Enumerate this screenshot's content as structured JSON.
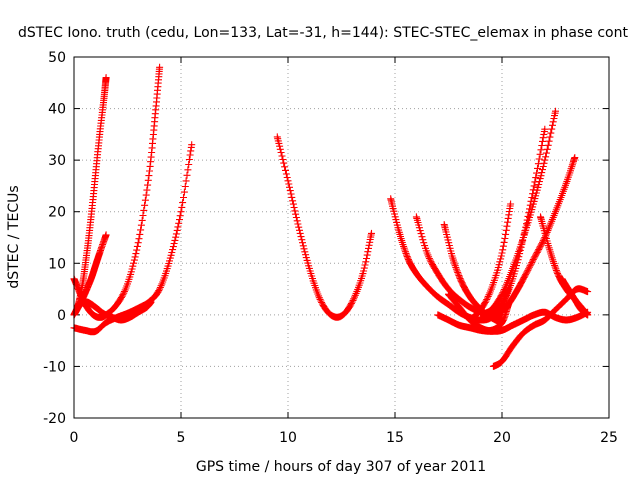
{
  "chart_data": {
    "type": "scatter",
    "title": "dSTEC Iono. truth (cedu, Lon=133, Lat=-31, h=144): STEC-STEC_elemax in phase cont",
    "xlabel": "GPS time / hours of day 307 of year 2011",
    "ylabel": "dSTEC  / TECUs",
    "xlim": [
      0,
      25
    ],
    "ylim": [
      -20,
      50
    ],
    "xticks": [
      0,
      5,
      10,
      15,
      20,
      25
    ],
    "yticks": [
      -20,
      -10,
      0,
      10,
      20,
      30,
      40,
      50
    ],
    "grid": true,
    "marker": "plus",
    "color": "#ff0000",
    "series": [
      {
        "x": [
          0.0,
          0.2,
          0.4,
          0.6,
          0.8,
          1.0,
          1.2,
          1.4,
          1.5
        ],
        "y": [
          0.0,
          2.0,
          6.0,
          12.0,
          19.0,
          27.0,
          35.0,
          42.0,
          46.0
        ]
      },
      {
        "x": [
          0.0,
          0.3,
          0.6,
          0.9,
          1.2,
          1.5,
          2.0,
          2.5,
          3.0,
          3.5,
          3.8,
          4.0
        ],
        "y": [
          7.0,
          4.0,
          1.5,
          0.0,
          -0.5,
          0.0,
          2.0,
          6.0,
          14.0,
          27.0,
          39.0,
          48.0
        ]
      },
      {
        "x": [
          0.0,
          0.2,
          0.5,
          0.8,
          1.0,
          1.2,
          1.5
        ],
        "y": [
          0.0,
          1.5,
          4.0,
          7.0,
          9.5,
          12.0,
          15.5
        ]
      },
      {
        "x": [
          0.0,
          0.5,
          1.0,
          1.5,
          2.0,
          2.5,
          3.0,
          3.5,
          4.0,
          4.5,
          5.0,
          5.5
        ],
        "y": [
          -2.5,
          -3.0,
          -3.2,
          -1.5,
          -0.5,
          0.3,
          1.3,
          2.5,
          5.0,
          11.0,
          20.0,
          33.0
        ]
      },
      {
        "x": [
          0.0,
          0.3,
          0.6,
          1.0,
          1.4,
          1.8,
          2.2,
          2.6,
          3.0,
          3.4,
          3.6
        ],
        "y": [
          0.0,
          2.0,
          2.5,
          1.5,
          0.2,
          -0.5,
          -1.0,
          -0.5,
          0.5,
          1.5,
          2.5
        ]
      },
      {
        "x": [
          9.5,
          10.0,
          10.5,
          11.0,
          11.5,
          12.0,
          12.5,
          13.0,
          13.5,
          13.9
        ],
        "y": [
          34.5,
          26.0,
          17.0,
          9.0,
          3.0,
          0.0,
          -0.2,
          2.5,
          8.0,
          15.8
        ]
      },
      {
        "x": [
          14.8,
          15.2,
          15.6,
          16.0,
          16.5,
          17.0,
          17.5,
          18.0,
          18.5,
          19.0,
          19.5,
          20.0,
          20.3
        ],
        "y": [
          22.5,
          16.0,
          11.0,
          8.0,
          5.5,
          3.5,
          2.0,
          0.5,
          -0.5,
          -1.0,
          -0.5,
          2.0,
          5.0
        ]
      },
      {
        "x": [
          16.0,
          16.5,
          17.0,
          17.5,
          18.0,
          18.5,
          19.0,
          19.5,
          20.0
        ],
        "y": [
          19.0,
          12.0,
          8.0,
          5.0,
          3.0,
          1.5,
          0.5,
          0.0,
          -0.2
        ]
      },
      {
        "x": [
          17.3,
          17.7,
          18.1,
          18.5,
          18.9,
          19.3,
          19.7,
          20.0
        ],
        "y": [
          17.5,
          11.0,
          6.5,
          3.5,
          1.5,
          0.0,
          -1.0,
          -1.5
        ]
      },
      {
        "x": [
          17.5,
          18.0,
          18.5,
          19.0,
          19.5,
          20.0,
          20.3
        ],
        "y": [
          4.0,
          1.5,
          -1.0,
          -2.5,
          -3.0,
          -1.5,
          2.0
        ]
      },
      {
        "x": [
          17.0,
          17.5,
          18.0,
          18.5,
          19.0,
          19.5,
          20.0,
          20.5,
          21.0,
          21.5,
          22.0,
          22.5,
          23.0,
          23.5,
          24.0
        ],
        "y": [
          0.0,
          -1.0,
          -2.0,
          -2.5,
          -3.0,
          -3.2,
          -3.0,
          -2.0,
          -1.0,
          0.0,
          0.5,
          -0.5,
          -1.0,
          -0.5,
          0.5
        ]
      },
      {
        "x": [
          18.5,
          19.0,
          19.5,
          20.0,
          20.4
        ],
        "y": [
          -1.0,
          1.0,
          5.0,
          12.0,
          21.5
        ]
      },
      {
        "x": [
          19.0,
          19.5,
          20.0,
          20.5,
          21.0,
          21.5,
          22.0,
          22.5
        ],
        "y": [
          0.0,
          1.0,
          4.0,
          9.0,
          15.0,
          22.0,
          30.0,
          39.5
        ]
      },
      {
        "x": [
          19.5,
          20.0,
          20.5,
          21.0,
          21.5,
          22.0
        ],
        "y": [
          0.0,
          2.0,
          7.0,
          15.0,
          25.0,
          36.0
        ]
      },
      {
        "x": [
          19.8,
          20.2,
          20.6,
          21.0,
          21.5,
          22.0,
          22.5,
          23.0,
          23.4
        ],
        "y": [
          0.0,
          1.5,
          4.0,
          7.0,
          11.0,
          15.0,
          20.0,
          25.5,
          30.5
        ]
      },
      {
        "x": [
          19.6,
          20.0,
          20.5,
          21.0,
          21.5,
          22.0,
          22.5,
          23.0,
          23.5,
          24.0
        ],
        "y": [
          -10.0,
          -9.0,
          -6.0,
          -3.5,
          -2.0,
          -1.0,
          1.0,
          3.0,
          5.0,
          4.5
        ]
      },
      {
        "x": [
          21.8,
          22.2,
          22.6,
          23.0,
          23.4,
          23.8,
          24.0
        ],
        "y": [
          19.0,
          13.0,
          8.0,
          5.0,
          3.0,
          1.0,
          0.0
        ]
      },
      {
        "x": [
          22.8,
          23.1,
          23.4,
          23.7,
          24.0
        ],
        "y": [
          7.0,
          5.0,
          3.0,
          1.0,
          0.0
        ]
      }
    ]
  }
}
